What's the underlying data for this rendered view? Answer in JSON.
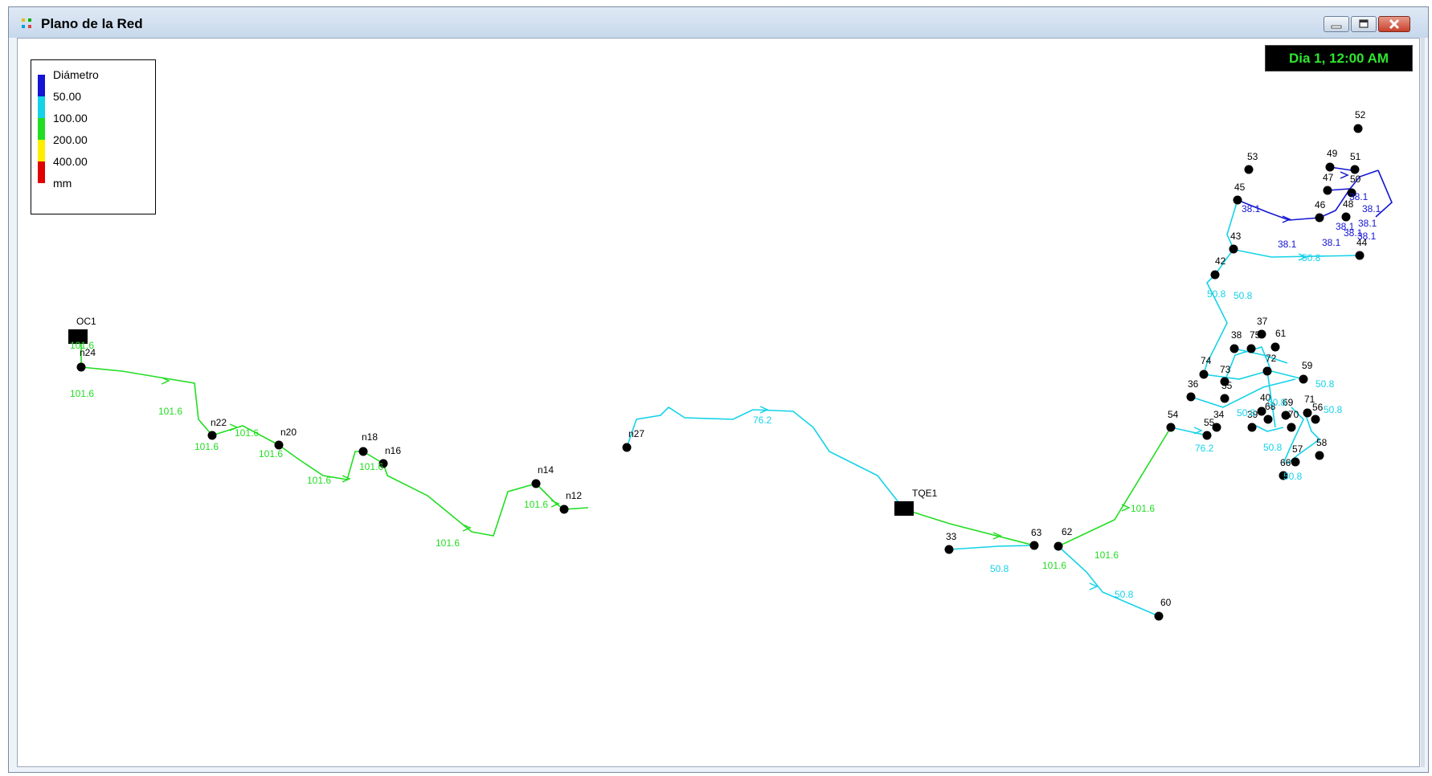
{
  "window": {
    "title": "Plano de la Red"
  },
  "clock": {
    "text": "Dia 1, 12:00 AM"
  },
  "colors": {
    "blue": "#1414d4",
    "cyan": "#14d2e8",
    "green": "#22dd22",
    "yellow": "#ffee00",
    "red": "#e00000"
  },
  "legend": {
    "title": "Diámetro",
    "thresholds": [
      "50.00",
      "100.00",
      "200.00",
      "400.00"
    ],
    "unit": "mm"
  },
  "map": {
    "nodes": [
      {
        "id": "n24"
      },
      {
        "id": "n22"
      },
      {
        "id": "n20"
      },
      {
        "id": "n18"
      },
      {
        "id": "n16"
      },
      {
        "id": "n14"
      },
      {
        "id": "n12"
      },
      {
        "id": "n27"
      },
      {
        "id": "33"
      },
      {
        "id": "63"
      },
      {
        "id": "62"
      },
      {
        "id": "60"
      },
      {
        "id": "54"
      },
      {
        "id": "55"
      },
      {
        "id": "34"
      },
      {
        "id": "35"
      },
      {
        "id": "36"
      },
      {
        "id": "74"
      },
      {
        "id": "73"
      },
      {
        "id": "38"
      },
      {
        "id": "37"
      },
      {
        "id": "75"
      },
      {
        "id": "61"
      },
      {
        "id": "72"
      },
      {
        "id": "59"
      },
      {
        "id": "71"
      },
      {
        "id": "56"
      },
      {
        "id": "58"
      },
      {
        "id": "57"
      },
      {
        "id": "66"
      },
      {
        "id": "39"
      },
      {
        "id": "40"
      },
      {
        "id": "68"
      },
      {
        "id": "69"
      },
      {
        "id": "70"
      },
      {
        "id": "42"
      },
      {
        "id": "43"
      },
      {
        "id": "44"
      },
      {
        "id": "45"
      },
      {
        "id": "53"
      },
      {
        "id": "46"
      },
      {
        "id": "47"
      },
      {
        "id": "48"
      },
      {
        "id": "49"
      },
      {
        "id": "50"
      },
      {
        "id": "51"
      },
      {
        "id": "52"
      }
    ],
    "tanks": [
      {
        "id": "OC1"
      },
      {
        "id": "TQE1"
      }
    ],
    "pipe_labels": [
      "101.6",
      "101.6",
      "101.6",
      "101.6",
      "101.6",
      "101.6",
      "101.6",
      "101.6",
      "101.6",
      "101.6",
      "101.6",
      "101.6",
      "101.6",
      "76.2",
      "76.2",
      "50.8",
      "50.8",
      "50.8",
      "50.8",
      "50.8",
      "50.8",
      "50.8",
      "50.8",
      "50.8",
      "50.8",
      "50.8",
      "38.1",
      "38.1",
      "38.1",
      "38.1",
      "38.1",
      "38.1",
      "38.1",
      "38.1",
      "38.1"
    ]
  }
}
